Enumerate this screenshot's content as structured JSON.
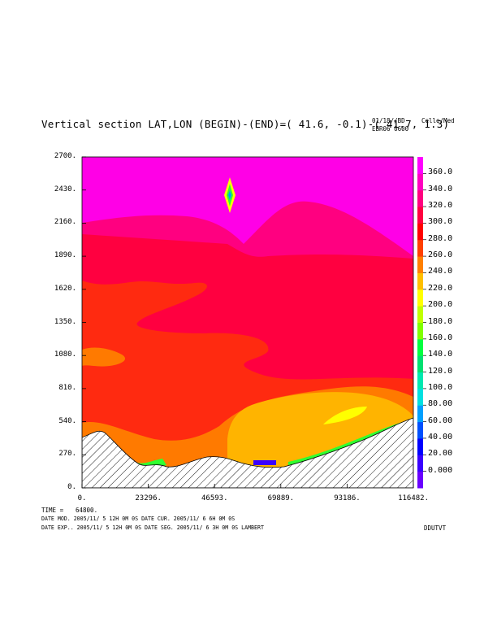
{
  "header": {
    "title": "Vertical section LAT,LON (BEGIN)-(END)=( 41.6, -0.1)-( 41.7,  1.3)",
    "meta_line1": "01/18//BD",
    "meta_line2": "EBR06 0600",
    "units": "Celle/Med"
  },
  "footer": {
    "time_label": "TIME =",
    "time_value": "64800.",
    "line1": "DATE MOD. 2005/11/ 5  12H 0M 0S   DATE CUR. 2005/11/ 6   6H 0M 0S",
    "line2": "DATE EXP.. 2005/11/ 5  12H 0M 0S   DATE SEG. 2005/11/ 6   3H 0M 0S   LAMBERT",
    "code": "DDUTVT"
  },
  "chart_data": {
    "type": "contour",
    "x_tick_labels": [
      "0.",
      "23296.",
      "46593.",
      "69889.",
      "93186.",
      "116482."
    ],
    "y_tick_labels": [
      "0.",
      "270.",
      "540.",
      "810.",
      "1080.",
      "1350.",
      "1620.",
      "1890.",
      "2160.",
      "2430.",
      "2700."
    ],
    "xlim": [
      0,
      116482
    ],
    "ylim": [
      0,
      2700
    ],
    "colorbar": {
      "labels": [
        "0.000",
        "20.00",
        "40.00",
        "60.00",
        "80.00",
        "100.0",
        "120.0",
        "140.0",
        "160.0",
        "180.0",
        "200.0",
        "220.0",
        "240.0",
        "260.0",
        "280.0",
        "300.0",
        "320.0",
        "340.0",
        "360.0"
      ],
      "colors": [
        "#6a00ff",
        "#3a00ff",
        "#0000ff",
        "#0050ff",
        "#00a0ff",
        "#00e0e0",
        "#00e8b0",
        "#00e070",
        "#00ff40",
        "#80ff00",
        "#c0ff00",
        "#ffff00",
        "#ffc000",
        "#ff8000",
        "#ff4000",
        "#ff0000",
        "#ff0040",
        "#ff0080",
        "#ff00c0",
        "#ff00ff"
      ]
    },
    "region_colors": {
      "top": "#ff00e6",
      "upper": "#ff0080",
      "middle": "#ff0040",
      "lower": "#ff2a10",
      "orange": "#ff7a00",
      "amber": "#ffb400",
      "yellow": "#ffff00",
      "green": "#30ff30"
    }
  }
}
